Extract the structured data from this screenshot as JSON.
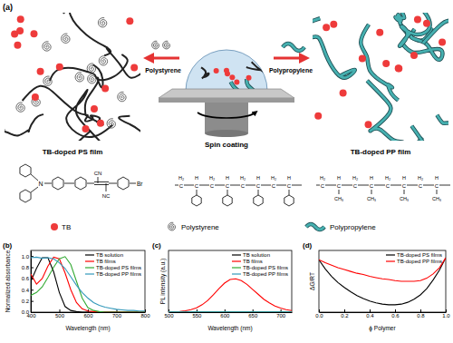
{
  "diagram": {
    "panel_label": "(a)",
    "process": "Spin coating",
    "left_film": "TB-doped PS film",
    "right_film": "TB-doped PP film",
    "left_polymer": "Polystyrene",
    "right_polymer": "Polypropylene",
    "structures": {
      "tb": {
        "atoms": [
          "N",
          "CN",
          "NC",
          "Br"
        ]
      },
      "polystyrene": {
        "top": [
          "H₂",
          "H",
          "H₂",
          "H",
          "H₂",
          "H",
          "H₂",
          "H"
        ],
        "carbons": [
          "C",
          "C",
          "C",
          "C",
          "C",
          "C",
          "C",
          "C"
        ]
      },
      "polypropylene": {
        "top": [
          "H₂",
          "H",
          "H₂",
          "H",
          "H₂",
          "H",
          "H₂",
          "H"
        ],
        "carbons": [
          "C",
          "C",
          "C",
          "C",
          "C",
          "C",
          "C",
          "C"
        ],
        "bottom": [
          "CH₃",
          "CH₃",
          "CH₃",
          "CH₃"
        ]
      }
    },
    "legend": [
      "TB",
      "Polystyrene",
      "Polypropylene"
    ]
  },
  "chart_data": [
    {
      "type": "line",
      "title": "(b)",
      "xlabel": "Wavelength (nm)",
      "ylabel": "Normalized absorbance",
      "x": [
        400,
        420,
        440,
        460,
        480,
        500,
        520,
        540,
        560,
        580,
        600,
        620,
        640,
        660,
        680,
        700,
        720,
        740,
        760,
        780,
        800
      ],
      "xlim": [
        400,
        800
      ],
      "xticks": [
        400,
        500,
        600,
        700,
        800
      ],
      "ylim": [
        0,
        1.1
      ],
      "yticks": [
        {
          "value": 0,
          "label": "0.0"
        },
        {
          "value": 0.2,
          "label": "0.2"
        },
        {
          "value": 0.4,
          "label": "0.4"
        },
        {
          "value": 0.6,
          "label": "0.6"
        },
        {
          "value": 0.8,
          "label": "0.8"
        },
        {
          "value": 1,
          "label": "1.0"
        }
      ],
      "grid": false,
      "legend": "upper right",
      "series": [
        {
          "name": "TB solution",
          "color": "#000000",
          "values": [
            0.55,
            0.78,
            0.97,
            0.97,
            0.72,
            0.35,
            0.1,
            0.03,
            0.01,
            0,
            0,
            0,
            0,
            0,
            0,
            0,
            0,
            0,
            0,
            0,
            0
          ]
        },
        {
          "name": "TB films",
          "color": "#ff0000",
          "values": [
            0.68,
            0.5,
            0.6,
            0.82,
            0.98,
            0.95,
            0.7,
            0.4,
            0.17,
            0.06,
            0.02,
            0.01,
            0,
            0,
            0,
            0,
            0,
            0,
            0,
            0,
            0
          ]
        },
        {
          "name": "TB-doped PS films",
          "color": "#33aa33",
          "values": [
            0.3,
            0.35,
            0.45,
            0.62,
            0.8,
            0.95,
            0.99,
            0.85,
            0.55,
            0.25,
            0.08,
            0.03,
            0.01,
            0,
            0,
            0,
            0,
            0,
            0,
            0,
            0
          ]
        },
        {
          "name": "TB-doped PP films",
          "color": "#3399bb",
          "values": [
            0.97,
            0.98,
            0.96,
            0.97,
            0.95,
            0.88,
            0.78,
            0.63,
            0.48,
            0.35,
            0.25,
            0.17,
            0.12,
            0.09,
            0.07,
            0.05,
            0.04,
            0.03,
            0.03,
            0.02,
            0.02
          ]
        }
      ]
    },
    {
      "type": "line",
      "title": "(c)",
      "xlabel": "Wavelength (nm)",
      "ylabel": "PL intensity (a.u.)",
      "x": [
        500,
        510,
        520,
        530,
        540,
        550,
        560,
        570,
        580,
        590,
        600,
        610,
        620,
        630,
        640,
        650,
        660,
        670,
        680,
        690,
        700,
        710,
        720
      ],
      "xlim": [
        500,
        720
      ],
      "xticks": [
        500,
        550,
        600,
        650,
        700
      ],
      "ylim": [
        0,
        1000
      ],
      "tick_labels": "x",
      "grid": false,
      "legend": "upper right",
      "series": [
        {
          "name": "TB solution",
          "color": "#000000",
          "values": [
            2,
            2,
            2,
            2,
            2,
            2,
            2,
            2,
            2,
            2,
            2,
            2,
            2,
            2,
            2,
            2,
            2,
            2,
            2,
            2,
            2,
            2,
            2
          ]
        },
        {
          "name": "TB films",
          "color": "#ff0000",
          "values": [
            3,
            6,
            12,
            22,
            40,
            70,
            120,
            190,
            280,
            380,
            470,
            530,
            540,
            510,
            450,
            370,
            290,
            210,
            150,
            100,
            65,
            40,
            25
          ]
        },
        {
          "name": "TB-doped PS films",
          "color": "#33aa33",
          "values": [
            2,
            2,
            2,
            2,
            2,
            2,
            2,
            2,
            2,
            2,
            2,
            2,
            2,
            2,
            2,
            2,
            2,
            2,
            2,
            2,
            2,
            2,
            2
          ]
        },
        {
          "name": "TB-doped PP films",
          "color": "#3399bb",
          "values": [
            2,
            2,
            2,
            2,
            2,
            2,
            2,
            2,
            2,
            2,
            2,
            2,
            2,
            2,
            2,
            2,
            2,
            2,
            2,
            2,
            2,
            2,
            2
          ]
        }
      ]
    },
    {
      "type": "line",
      "title": "(d)",
      "xlabel": "ϕ Polymer",
      "ylabel": "ΔG/RT",
      "x": [
        0,
        0.05,
        0.1,
        0.15,
        0.2,
        0.25,
        0.3,
        0.35,
        0.4,
        0.45,
        0.5,
        0.55,
        0.6,
        0.65,
        0.7,
        0.75,
        0.8,
        0.85,
        0.9,
        0.95,
        1
      ],
      "xlim": [
        0,
        1
      ],
      "xticks": [
        {
          "value": 0,
          "label": "0.0"
        },
        {
          "value": 0.2,
          "label": "0.2"
        },
        {
          "value": 0.4,
          "label": "0.4"
        },
        {
          "value": 0.6,
          "label": "0.6"
        },
        {
          "value": 0.8,
          "label": "0.8"
        },
        {
          "value": 1,
          "label": "1.0"
        }
      ],
      "ylim": [
        0,
        1
      ],
      "tick_labels": "x",
      "grid": false,
      "legend": "upper right",
      "series": [
        {
          "name": "TB-doped PS films",
          "color": "#000000",
          "values": [
            0.85,
            0.7,
            0.58,
            0.48,
            0.4,
            0.33,
            0.27,
            0.22,
            0.18,
            0.15,
            0.13,
            0.12,
            0.12,
            0.13,
            0.16,
            0.21,
            0.28,
            0.38,
            0.52,
            0.68,
            0.88
          ]
        },
        {
          "name": "TB-doped PP films",
          "color": "#ff0000",
          "values": [
            0.85,
            0.8,
            0.76,
            0.72,
            0.69,
            0.66,
            0.63,
            0.61,
            0.58,
            0.56,
            0.54,
            0.53,
            0.51,
            0.5,
            0.5,
            0.5,
            0.51,
            0.55,
            0.62,
            0.72,
            0.88
          ]
        }
      ]
    }
  ]
}
